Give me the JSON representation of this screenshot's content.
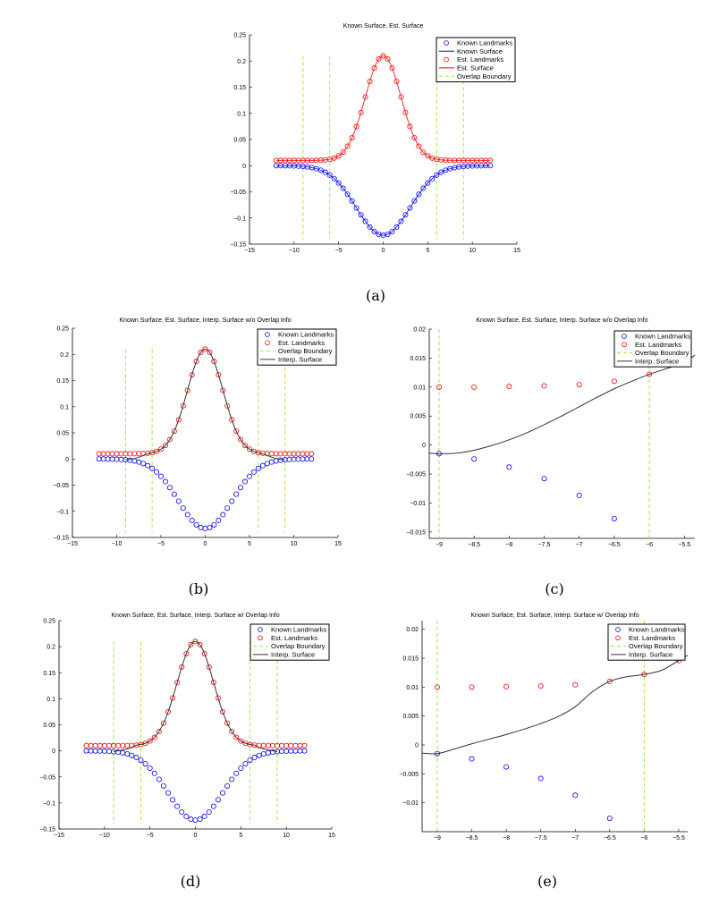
{
  "colors": {
    "known": "#0000ff",
    "est": "#ff0000",
    "overlap": "#99ee44",
    "interp": "#333333"
  },
  "chart_data": {
    "shared": {
      "landmark_x": [
        -12,
        -11.5,
        -11,
        -10.5,
        -10,
        -9.5,
        -9,
        -8.5,
        -8,
        -7.5,
        -7,
        -6.5,
        -6,
        -5.5,
        -5,
        -4.5,
        -4,
        -3.5,
        -3,
        -2.5,
        -2,
        -1.5,
        -1,
        -0.5,
        0,
        0.5,
        1,
        1.5,
        2,
        2.5,
        3,
        3.5,
        4,
        4.5,
        5,
        5.5,
        6,
        6.5,
        7,
        7.5,
        8,
        8.5,
        9,
        9.5,
        10,
        10.5,
        11,
        11.5,
        12
      ],
      "known_landmarks": [
        0.0,
        -0.0001,
        -0.0002,
        -0.0003,
        -0.0005,
        -0.0009,
        -0.0015,
        -0.0024,
        -0.0038,
        -0.0058,
        -0.0087,
        -0.0127,
        -0.018,
        -0.0248,
        -0.0332,
        -0.0432,
        -0.0547,
        -0.0673,
        -0.0807,
        -0.094,
        -0.1065,
        -0.1174,
        -0.1258,
        -0.1312,
        -0.133,
        -0.1312,
        -0.1258,
        -0.1174,
        -0.1065,
        -0.094,
        -0.0807,
        -0.0673,
        -0.0547,
        -0.0432,
        -0.0332,
        -0.0248,
        -0.018,
        -0.0127,
        -0.0087,
        -0.0058,
        -0.0038,
        -0.0024,
        -0.0015,
        -0.0009,
        -0.0005,
        -0.0003,
        -0.0002,
        -0.0001,
        0.0
      ],
      "est_landmarks": [
        0.01,
        0.01,
        0.01,
        0.01,
        0.01,
        0.01,
        0.01,
        0.01,
        0.0101,
        0.0102,
        0.0104,
        0.011,
        0.0122,
        0.0146,
        0.0188,
        0.0259,
        0.0371,
        0.0533,
        0.0749,
        0.1016,
        0.1313,
        0.161,
        0.1865,
        0.2038,
        0.21,
        0.2038,
        0.1865,
        0.161,
        0.1313,
        0.1016,
        0.0749,
        0.0533,
        0.0371,
        0.0259,
        0.0188,
        0.0146,
        0.0122,
        0.011,
        0.0104,
        0.0102,
        0.0101,
        0.01,
        0.01,
        0.01,
        0.01,
        0.01,
        0.01,
        0.01,
        0.01
      ],
      "overlap_boundary_x": [
        -9,
        -6,
        6,
        9
      ]
    },
    "panels": [
      {
        "id": "a",
        "type": "line",
        "panel_label": "(a)",
        "title": "Known Surface, Est. Surface",
        "xlim": [
          -15,
          15
        ],
        "ylim": [
          -0.15,
          0.25
        ],
        "xticks": [
          -15,
          -10,
          -5,
          0,
          5,
          10,
          15
        ],
        "xtick_labels": [
          "−15",
          "−10",
          "−5",
          "0",
          "5",
          "10",
          "15"
        ],
        "yticks": [
          -0.15,
          -0.1,
          -0.05,
          0,
          0.05,
          0.1,
          0.15,
          0.2,
          0.25
        ],
        "ytick_labels": [
          "−0.15",
          "−0.1",
          "−0.05",
          "0",
          "0.05",
          "0.1",
          "0.15",
          "0.2",
          "0.25"
        ],
        "boundary_yrange": [
          -0.14,
          0.21
        ],
        "show_surfaces": true,
        "interp_surface": null,
        "legend": [
          {
            "label": "Known Landmarks",
            "kind": "marker",
            "series": "known"
          },
          {
            "label": "Known Surface",
            "kind": "line",
            "series": "known"
          },
          {
            "label": "Est. Landmarks",
            "kind": "marker",
            "series": "est"
          },
          {
            "label": "Est. Surface",
            "kind": "line",
            "series": "est"
          },
          {
            "label": "Overlap Boundary",
            "kind": "dash",
            "series": "overlap"
          }
        ]
      },
      {
        "id": "b",
        "type": "line",
        "panel_label": "(b)",
        "title": "Known Surface, Est. Surface, Interp. Surface w/o Overlap Info",
        "xlim": [
          -15,
          15
        ],
        "ylim": [
          -0.15,
          0.25
        ],
        "xticks": [
          -15,
          -10,
          -5,
          0,
          5,
          10,
          15
        ],
        "xtick_labels": [
          "−15",
          "−10",
          "−5",
          "0",
          "5",
          "10",
          "15"
        ],
        "yticks": [
          -0.15,
          -0.1,
          -0.05,
          0,
          0.05,
          0.1,
          0.15,
          0.2,
          0.25
        ],
        "ytick_labels": [
          "−0.15",
          "−0.1",
          "−0.05",
          "0",
          "0.05",
          "0.1",
          "0.15",
          "0.2",
          "0.25"
        ],
        "boundary_yrange": [
          -0.14,
          0.21
        ],
        "show_surfaces": false,
        "interp_surface": {
          "x": [
            -9,
            -8.5,
            -8,
            -7.5,
            -7,
            -6.5,
            -6,
            -5.5,
            -5,
            -4.5,
            -4,
            -3.5,
            -3,
            -2.5,
            -2,
            -1.5,
            -1,
            -0.5,
            0,
            0.5,
            1,
            1.5,
            2,
            2.5,
            3,
            3.5,
            4,
            4.5,
            5,
            5.5,
            6,
            6.5,
            7,
            7.5,
            8,
            8.5,
            9
          ],
          "y": [
            -0.0015,
            -0.0009,
            0.0009,
            0.0035,
            0.0066,
            0.0097,
            0.0122,
            0.0146,
            0.0188,
            0.0259,
            0.0371,
            0.0533,
            0.0749,
            0.1016,
            0.1313,
            0.161,
            0.1865,
            0.2038,
            0.21,
            0.2038,
            0.1865,
            0.161,
            0.1313,
            0.1016,
            0.0749,
            0.0533,
            0.0371,
            0.0259,
            0.0188,
            0.0146,
            0.0122,
            0.0097,
            0.0066,
            0.0035,
            0.0009,
            -0.0009,
            -0.0015
          ]
        },
        "legend": [
          {
            "label": "Known Landmarks",
            "kind": "marker",
            "series": "known"
          },
          {
            "label": "Est. Landmarks",
            "kind": "marker",
            "series": "est"
          },
          {
            "label": "Overlap Boundary",
            "kind": "dash",
            "series": "overlap"
          },
          {
            "label": "Interp. Surface",
            "kind": "line",
            "series": "interp"
          }
        ]
      },
      {
        "id": "c",
        "type": "line",
        "panel_label": "(c)",
        "title": "Known Surface, Est. Surface, Interp. Surface w/o Overlap Info",
        "xlim": [
          -9.14,
          -5.35
        ],
        "ylim": [
          -0.0161,
          0.02
        ],
        "xticks": [
          -9,
          -8.5,
          -8,
          -7.5,
          -7,
          -6.5,
          -6,
          -5.5
        ],
        "xtick_labels": [
          "−9",
          "−8.5",
          "−8",
          "−7.5",
          "−7",
          "−6.5",
          "−6",
          "−5.5"
        ],
        "yticks": [
          -0.015,
          -0.01,
          -0.005,
          0,
          0.005,
          0.01,
          0.015,
          0.02
        ],
        "ytick_labels": [
          "−0.015",
          "−0.01",
          "−0.005",
          "0",
          "0.005",
          "0.01",
          "0.015",
          "0.02"
        ],
        "boundary_yrange": null,
        "show_surfaces": false,
        "interp_surface": {
          "x": [
            -9.14,
            -9,
            -8.75,
            -8.5,
            -8.25,
            -8,
            -7.75,
            -7.5,
            -7.25,
            -7,
            -6.75,
            -6.5,
            -6.25,
            -6,
            -5.75,
            -5.5,
            -5.35
          ],
          "y": [
            -0.0014,
            -0.0015,
            -0.0014,
            -0.0009,
            -0.0001,
            0.0009,
            0.0021,
            0.0035,
            0.005,
            0.0066,
            0.0082,
            0.0097,
            0.011,
            0.0122,
            0.0132,
            0.0143,
            0.0155
          ]
        },
        "legend": [
          {
            "label": "Known Landmarks",
            "kind": "marker",
            "series": "known"
          },
          {
            "label": "Est. Landmarks",
            "kind": "marker",
            "series": "est"
          },
          {
            "label": "Overlap Boundary",
            "kind": "dash",
            "series": "overlap"
          },
          {
            "label": "Interp. Surface",
            "kind": "line",
            "series": "interp"
          }
        ]
      },
      {
        "id": "d",
        "type": "line",
        "panel_label": "(d)",
        "title": "Known Surface, Est. Surface, Interp. Surface w/ Overlap Info",
        "xlim": [
          -15,
          15
        ],
        "ylim": [
          -0.15,
          0.25
        ],
        "xticks": [
          -15,
          -10,
          -5,
          0,
          5,
          10,
          15
        ],
        "xtick_labels": [
          "−15",
          "−10",
          "−5",
          "0",
          "5",
          "10",
          "15"
        ],
        "yticks": [
          -0.15,
          -0.1,
          -0.05,
          0,
          0.05,
          0.1,
          0.15,
          0.2,
          0.25
        ],
        "ytick_labels": [
          "−0.15",
          "−0.1",
          "−0.05",
          "0",
          "0.05",
          "0.1",
          "0.15",
          "0.2",
          "0.25"
        ],
        "boundary_yrange": [
          -0.14,
          0.21
        ],
        "show_surfaces": false,
        "interp_surface": {
          "x": [
            -9,
            -8.5,
            -8,
            -7.5,
            -7,
            -6.5,
            -6,
            -5.5,
            -5,
            -4.5,
            -4,
            -3.5,
            -3,
            -2.5,
            -2,
            -1.5,
            -1,
            -0.5,
            0,
            0.5,
            1,
            1.5,
            2,
            2.5,
            3,
            3.5,
            4,
            4.5,
            5,
            5.5,
            6,
            6.5,
            7,
            7.5,
            8,
            8.5,
            9
          ],
          "y": [
            -0.0015,
            0.0002,
            0.0018,
            0.0037,
            0.0066,
            0.011,
            0.0122,
            0.0146,
            0.0188,
            0.0259,
            0.0371,
            0.0533,
            0.0749,
            0.1016,
            0.1313,
            0.161,
            0.1865,
            0.2038,
            0.21,
            0.2038,
            0.1865,
            0.161,
            0.1313,
            0.1016,
            0.0749,
            0.0533,
            0.0371,
            0.0259,
            0.0188,
            0.0146,
            0.0122,
            0.011,
            0.0066,
            0.0037,
            0.0018,
            0.0002,
            -0.0015
          ]
        },
        "legend": [
          {
            "label": "Known Landmarks",
            "kind": "marker",
            "series": "known"
          },
          {
            "label": "Est. Landmarks",
            "kind": "marker",
            "series": "est"
          },
          {
            "label": "Overlap Boundary",
            "kind": "dash",
            "series": "overlap"
          },
          {
            "label": "Interp. Surface",
            "kind": "line",
            "series": "interp"
          }
        ]
      },
      {
        "id": "e",
        "type": "line",
        "panel_label": "(e)",
        "title": "Known Surface, Est. Surface, Interp. Surface w/ Overlap Info",
        "xlim": [
          -9.22,
          -5.37
        ],
        "ylim": [
          -0.015,
          0.0215
        ],
        "xticks": [
          -9,
          -8.5,
          -8,
          -7.5,
          -7,
          -6.5,
          -6,
          -5.5
        ],
        "xtick_labels": [
          "−9",
          "−8.5",
          "−8",
          "−7.5",
          "−7",
          "−6.5",
          "−6",
          "−5.5"
        ],
        "yticks": [
          -0.01,
          -0.005,
          0,
          0.005,
          0.01,
          0.015,
          0.02
        ],
        "ytick_labels": [
          "−0.01",
          "−0.005",
          "0",
          "0.005",
          "0.01",
          "0.015",
          "0.02"
        ],
        "boundary_yrange": null,
        "show_surfaces": false,
        "interp_surface": {
          "x": [
            -9.22,
            -9,
            -8.75,
            -8.5,
            -8.25,
            -8,
            -7.75,
            -7.5,
            -7.25,
            -7,
            -6.75,
            -6.5,
            -6.25,
            -6,
            -5.75,
            -5.5,
            -5.37
          ],
          "y": [
            -0.0014,
            -0.0015,
            -0.0007,
            0.0002,
            0.001,
            0.0018,
            0.0027,
            0.0037,
            0.0049,
            0.0066,
            0.0092,
            0.011,
            0.0118,
            0.0122,
            0.0129,
            0.0146,
            0.0155
          ]
        },
        "legend": [
          {
            "label": "Known Landmarks",
            "kind": "marker",
            "series": "known"
          },
          {
            "label": "Est. Landmarks",
            "kind": "marker",
            "series": "est"
          },
          {
            "label": "Overlap Boundary",
            "kind": "dash",
            "series": "overlap"
          },
          {
            "label": "Interp. Surface",
            "kind": "line",
            "series": "interp"
          }
        ]
      }
    ]
  }
}
